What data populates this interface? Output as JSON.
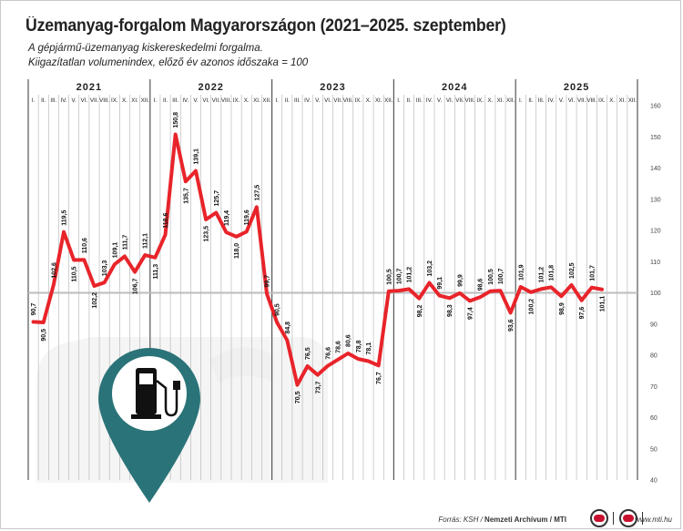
{
  "title": "Üzemanyag-forgalom Magyarországon (2021–2025. szeptember)",
  "subtitle_line1": "A gépjármű-üzemanyag kiskereskedelmi forgalma.",
  "subtitle_line2": "Kiigazítatlan volumenindex, előző év azonos időszaka = 100",
  "footer": {
    "source_prefix": "Forrás: KSH / ",
    "source_archive": "Nemzeti Archívum / MTI",
    "separator": "|",
    "url": "www.mti.hu"
  },
  "colors": {
    "line": "#e8242a",
    "pin": "#2a7378",
    "grid": "#b0b0b0",
    "reference_line": "#bdbdbd"
  },
  "icons": {
    "pin": "location-pin-icon",
    "pump": "fuel-pump-icon",
    "background": "jerry-can-icon"
  },
  "chart_data": {
    "type": "line",
    "title": "Üzemanyag-forgalom Magyarországon (2021–2025. szeptember)",
    "years": [
      "2021",
      "2022",
      "2023",
      "2024",
      "2025"
    ],
    "month_labels": [
      "I.",
      "II.",
      "III.",
      "IV.",
      "V.",
      "VI.",
      "VII.",
      "VIII.",
      "IX.",
      "X.",
      "XI.",
      "XII."
    ],
    "y_ticks": [
      40,
      50,
      60,
      70,
      80,
      90,
      100,
      110,
      120,
      130,
      140,
      150,
      160
    ],
    "ylim": [
      40,
      160
    ],
    "reference_value": 100,
    "grid": true,
    "values": [
      90.7,
      90.5,
      102.6,
      119.5,
      110.5,
      110.6,
      102.2,
      103.3,
      109.1,
      111.7,
      106.7,
      112.1,
      111.3,
      118.6,
      150.8,
      135.7,
      139.1,
      123.5,
      125.7,
      119.4,
      118.0,
      119.6,
      127.5,
      99.7,
      90.5,
      84.8,
      70.5,
      76.5,
      73.7,
      76.6,
      78.6,
      80.6,
      78.8,
      78.1,
      76.7,
      100.5,
      100.7,
      101.2,
      98.2,
      103.2,
      99.1,
      98.3,
      99.9,
      97.4,
      98.6,
      100.5,
      100.7,
      93.6,
      101.9,
      100.2,
      101.2,
      101.8,
      98.9,
      102.5,
      97.6,
      101.7,
      101.1
    ],
    "value_labels": [
      "90,7",
      "90,5",
      "102,6",
      "119,5",
      "110,5",
      "110,6",
      "102,2",
      "103,3",
      "109,1",
      "111,7",
      "106,7",
      "112,1",
      "111,3",
      "118,6",
      "150,8",
      "135,7",
      "139,1",
      "123,5",
      "125,7",
      "119,4",
      "118,0",
      "119,6",
      "127,5",
      "99,7",
      "90,5",
      "84,8",
      "70,5",
      "76,5",
      "73,7",
      "76,6",
      "78,6",
      "80,6",
      "78,8",
      "78,1",
      "76,7",
      "100,5",
      "100,7",
      "101,2",
      "98,2",
      "103,2",
      "99,1",
      "98,3",
      "99,9",
      "97,4",
      "98,6",
      "100,5",
      "100,7",
      "93,6",
      "101,9",
      "100,2",
      "101,2",
      "101,8",
      "98,9",
      "102,5",
      "97,6",
      "101,7",
      "101,1"
    ]
  }
}
